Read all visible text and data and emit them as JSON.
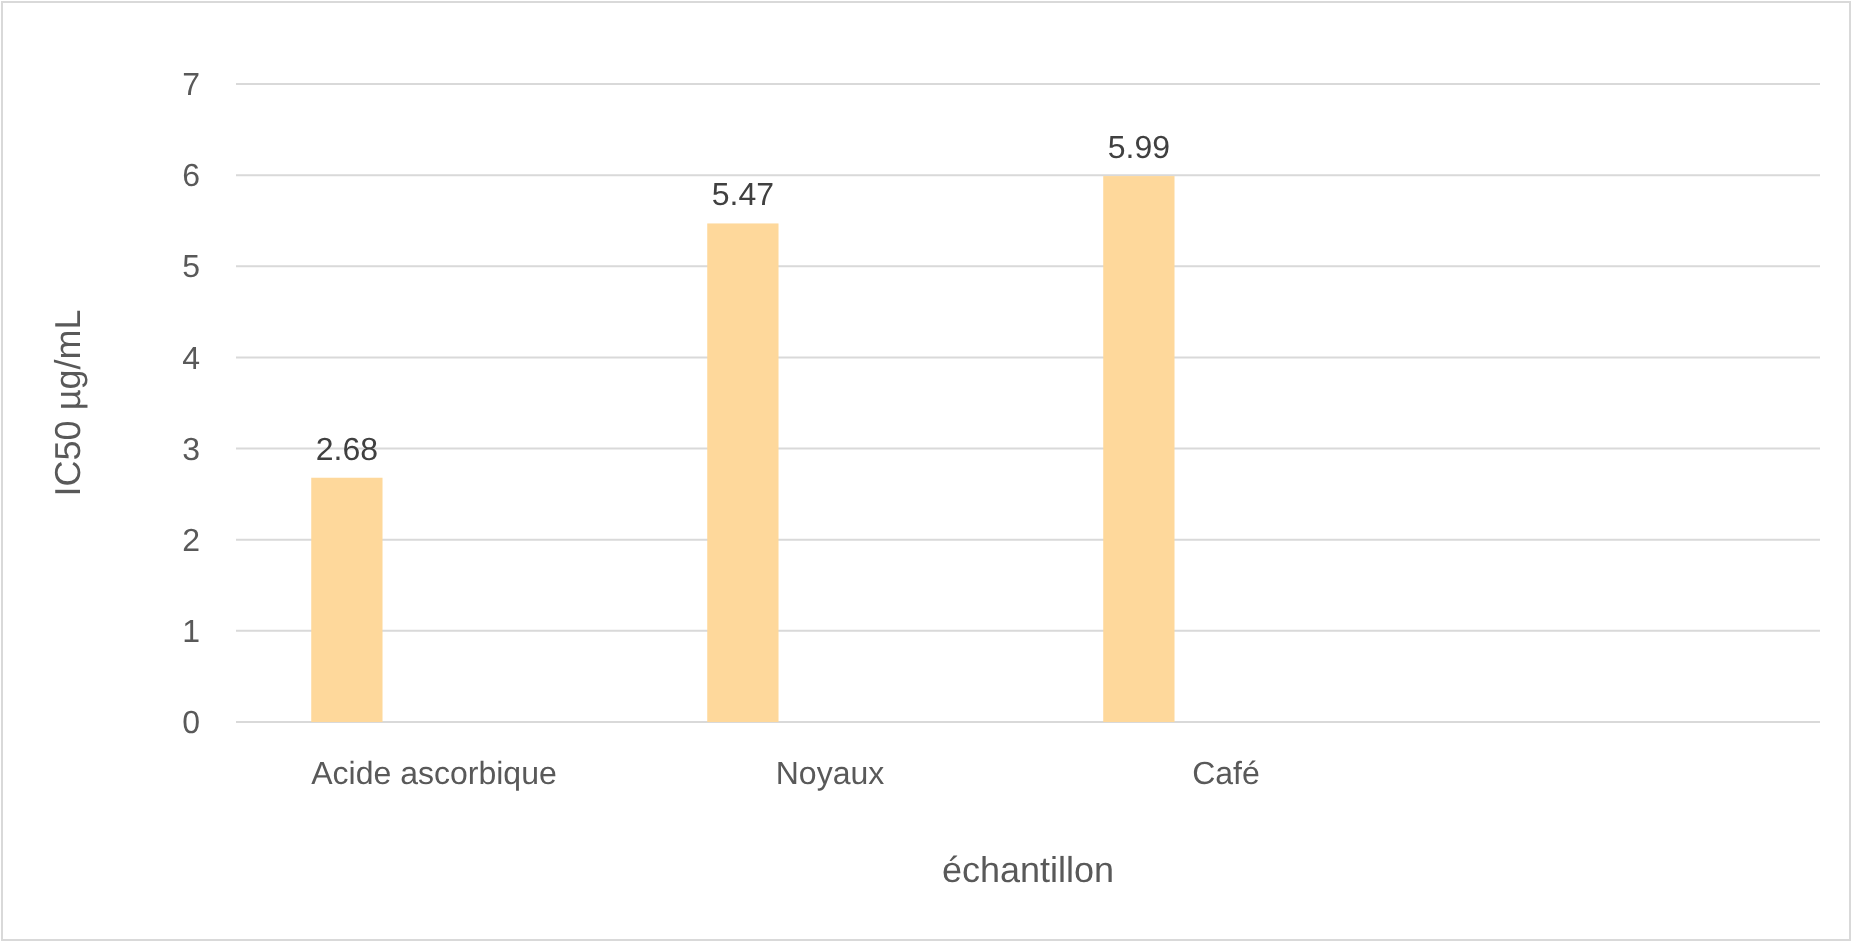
{
  "chart_data": {
    "type": "bar",
    "xlabel": "échantillon",
    "ylabel": "IC50 µg/mL",
    "categories": [
      "Acide ascorbique",
      "Noyaux",
      "Café",
      null
    ],
    "values": [
      2.68,
      5.47,
      5.99,
      null
    ],
    "color": "#fed89b",
    "ylim": [
      0,
      7
    ],
    "yticks": [
      0,
      1,
      2,
      3,
      4,
      5,
      6,
      7
    ],
    "grid": "y",
    "data_labels": true
  }
}
